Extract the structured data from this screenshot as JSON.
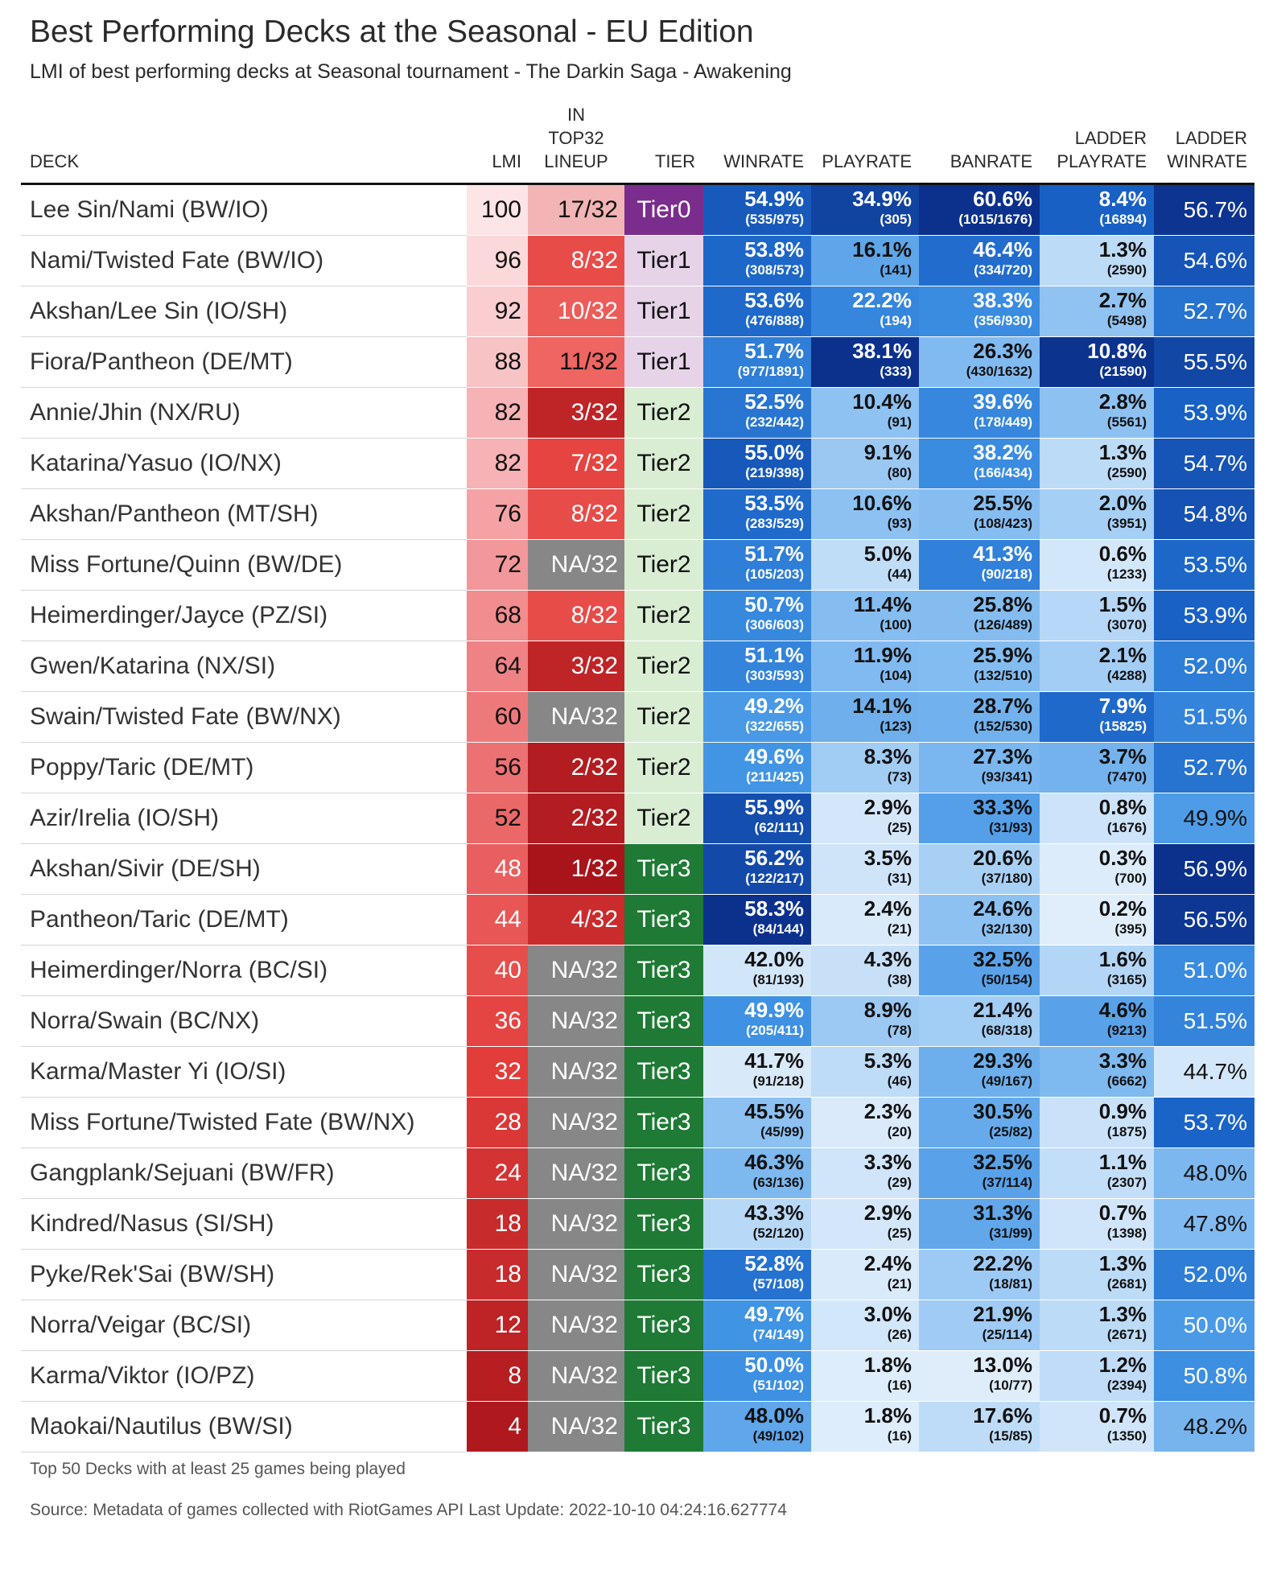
{
  "title": "Best Performing Decks at the Seasonal - EU Edition",
  "subtitle": "LMI of best performing decks at Seasonal tournament - The Darkin Saga - Awakening",
  "headers": {
    "deck": "DECK",
    "lmi": "LMI",
    "lineup": [
      "IN",
      "TOP32",
      "LINEUP"
    ],
    "tier": "TIER",
    "winrate": "WINRATE",
    "playrate": "PLAYRATE",
    "banrate": "BANRATE",
    "ladder_playrate": [
      "LADDER",
      "PLAYRATE"
    ],
    "ladder_winrate": [
      "LADDER",
      "WINRATE"
    ]
  },
  "colors": {
    "tier0": "#7b2d8e",
    "tier1": "#e6d3e8",
    "tier2": "#d9edd3",
    "tier3": "#1e7a34",
    "na_lineup": "#878787",
    "header_rule": "#111111"
  },
  "footnote": "Top 50 Decks with at least 25 games being played",
  "source": "Source: Metadata of games collected with RiotGames API Last Update: 2022-10-10 04:24:16.627774",
  "chart_data": {
    "type": "table",
    "rows": [
      {
        "deck": "Lee Sin/Nami (BW/IO)",
        "lmi": 100,
        "lineup": "17/32",
        "tier": "Tier0",
        "winrate": "54.9%",
        "winrate_count": "(535/975)",
        "playrate": "34.9%",
        "playrate_count": "(305)",
        "banrate": "60.6%",
        "banrate_count": "(1015/1676)",
        "ladder_playrate": "8.4%",
        "ladder_playrate_count": "(16894)",
        "ladder_winrate": "56.7%"
      },
      {
        "deck": "Nami/Twisted Fate (BW/IO)",
        "lmi": 96,
        "lineup": "8/32",
        "tier": "Tier1",
        "winrate": "53.8%",
        "winrate_count": "(308/573)",
        "playrate": "16.1%",
        "playrate_count": "(141)",
        "banrate": "46.4%",
        "banrate_count": "(334/720)",
        "ladder_playrate": "1.3%",
        "ladder_playrate_count": "(2590)",
        "ladder_winrate": "54.6%"
      },
      {
        "deck": "Akshan/Lee Sin (IO/SH)",
        "lmi": 92,
        "lineup": "10/32",
        "tier": "Tier1",
        "winrate": "53.6%",
        "winrate_count": "(476/888)",
        "playrate": "22.2%",
        "playrate_count": "(194)",
        "banrate": "38.3%",
        "banrate_count": "(356/930)",
        "ladder_playrate": "2.7%",
        "ladder_playrate_count": "(5498)",
        "ladder_winrate": "52.7%"
      },
      {
        "deck": "Fiora/Pantheon (DE/MT)",
        "lmi": 88,
        "lineup": "11/32",
        "tier": "Tier1",
        "winrate": "51.7%",
        "winrate_count": "(977/1891)",
        "playrate": "38.1%",
        "playrate_count": "(333)",
        "banrate": "26.3%",
        "banrate_count": "(430/1632)",
        "ladder_playrate": "10.8%",
        "ladder_playrate_count": "(21590)",
        "ladder_winrate": "55.5%"
      },
      {
        "deck": "Annie/Jhin (NX/RU)",
        "lmi": 82,
        "lineup": "3/32",
        "tier": "Tier2",
        "winrate": "52.5%",
        "winrate_count": "(232/442)",
        "playrate": "10.4%",
        "playrate_count": "(91)",
        "banrate": "39.6%",
        "banrate_count": "(178/449)",
        "ladder_playrate": "2.8%",
        "ladder_playrate_count": "(5561)",
        "ladder_winrate": "53.9%"
      },
      {
        "deck": "Katarina/Yasuo (IO/NX)",
        "lmi": 82,
        "lineup": "7/32",
        "tier": "Tier2",
        "winrate": "55.0%",
        "winrate_count": "(219/398)",
        "playrate": "9.1%",
        "playrate_count": "(80)",
        "banrate": "38.2%",
        "banrate_count": "(166/434)",
        "ladder_playrate": "1.3%",
        "ladder_playrate_count": "(2590)",
        "ladder_winrate": "54.7%"
      },
      {
        "deck": "Akshan/Pantheon (MT/SH)",
        "lmi": 76,
        "lineup": "8/32",
        "tier": "Tier2",
        "winrate": "53.5%",
        "winrate_count": "(283/529)",
        "playrate": "10.6%",
        "playrate_count": "(93)",
        "banrate": "25.5%",
        "banrate_count": "(108/423)",
        "ladder_playrate": "2.0%",
        "ladder_playrate_count": "(3951)",
        "ladder_winrate": "54.8%"
      },
      {
        "deck": "Miss Fortune/Quinn (BW/DE)",
        "lmi": 72,
        "lineup": "NA/32",
        "tier": "Tier2",
        "winrate": "51.7%",
        "winrate_count": "(105/203)",
        "playrate": "5.0%",
        "playrate_count": "(44)",
        "banrate": "41.3%",
        "banrate_count": "(90/218)",
        "ladder_playrate": "0.6%",
        "ladder_playrate_count": "(1233)",
        "ladder_winrate": "53.5%"
      },
      {
        "deck": "Heimerdinger/Jayce (PZ/SI)",
        "lmi": 68,
        "lineup": "8/32",
        "tier": "Tier2",
        "winrate": "50.7%",
        "winrate_count": "(306/603)",
        "playrate": "11.4%",
        "playrate_count": "(100)",
        "banrate": "25.8%",
        "banrate_count": "(126/489)",
        "ladder_playrate": "1.5%",
        "ladder_playrate_count": "(3070)",
        "ladder_winrate": "53.9%"
      },
      {
        "deck": "Gwen/Katarina (NX/SI)",
        "lmi": 64,
        "lineup": "3/32",
        "tier": "Tier2",
        "winrate": "51.1%",
        "winrate_count": "(303/593)",
        "playrate": "11.9%",
        "playrate_count": "(104)",
        "banrate": "25.9%",
        "banrate_count": "(132/510)",
        "ladder_playrate": "2.1%",
        "ladder_playrate_count": "(4288)",
        "ladder_winrate": "52.0%"
      },
      {
        "deck": "Swain/Twisted Fate (BW/NX)",
        "lmi": 60,
        "lineup": "NA/32",
        "tier": "Tier2",
        "winrate": "49.2%",
        "winrate_count": "(322/655)",
        "playrate": "14.1%",
        "playrate_count": "(123)",
        "banrate": "28.7%",
        "banrate_count": "(152/530)",
        "ladder_playrate": "7.9%",
        "ladder_playrate_count": "(15825)",
        "ladder_winrate": "51.5%"
      },
      {
        "deck": "Poppy/Taric (DE/MT)",
        "lmi": 56,
        "lineup": "2/32",
        "tier": "Tier2",
        "winrate": "49.6%",
        "winrate_count": "(211/425)",
        "playrate": "8.3%",
        "playrate_count": "(73)",
        "banrate": "27.3%",
        "banrate_count": "(93/341)",
        "ladder_playrate": "3.7%",
        "ladder_playrate_count": "(7470)",
        "ladder_winrate": "52.7%"
      },
      {
        "deck": "Azir/Irelia (IO/SH)",
        "lmi": 52,
        "lineup": "2/32",
        "tier": "Tier2",
        "winrate": "55.9%",
        "winrate_count": "(62/111)",
        "playrate": "2.9%",
        "playrate_count": "(25)",
        "banrate": "33.3%",
        "banrate_count": "(31/93)",
        "ladder_playrate": "0.8%",
        "ladder_playrate_count": "(1676)",
        "ladder_winrate": "49.9%"
      },
      {
        "deck": "Akshan/Sivir (DE/SH)",
        "lmi": 48,
        "lineup": "1/32",
        "tier": "Tier3",
        "winrate": "56.2%",
        "winrate_count": "(122/217)",
        "playrate": "3.5%",
        "playrate_count": "(31)",
        "banrate": "20.6%",
        "banrate_count": "(37/180)",
        "ladder_playrate": "0.3%",
        "ladder_playrate_count": "(700)",
        "ladder_winrate": "56.9%"
      },
      {
        "deck": "Pantheon/Taric (DE/MT)",
        "lmi": 44,
        "lineup": "4/32",
        "tier": "Tier3",
        "winrate": "58.3%",
        "winrate_count": "(84/144)",
        "playrate": "2.4%",
        "playrate_count": "(21)",
        "banrate": "24.6%",
        "banrate_count": "(32/130)",
        "ladder_playrate": "0.2%",
        "ladder_playrate_count": "(395)",
        "ladder_winrate": "56.5%"
      },
      {
        "deck": "Heimerdinger/Norra (BC/SI)",
        "lmi": 40,
        "lineup": "NA/32",
        "tier": "Tier3",
        "winrate": "42.0%",
        "winrate_count": "(81/193)",
        "playrate": "4.3%",
        "playrate_count": "(38)",
        "banrate": "32.5%",
        "banrate_count": "(50/154)",
        "ladder_playrate": "1.6%",
        "ladder_playrate_count": "(3165)",
        "ladder_winrate": "51.0%"
      },
      {
        "deck": "Norra/Swain (BC/NX)",
        "lmi": 36,
        "lineup": "NA/32",
        "tier": "Tier3",
        "winrate": "49.9%",
        "winrate_count": "(205/411)",
        "playrate": "8.9%",
        "playrate_count": "(78)",
        "banrate": "21.4%",
        "banrate_count": "(68/318)",
        "ladder_playrate": "4.6%",
        "ladder_playrate_count": "(9213)",
        "ladder_winrate": "51.5%"
      },
      {
        "deck": "Karma/Master Yi (IO/SI)",
        "lmi": 32,
        "lineup": "NA/32",
        "tier": "Tier3",
        "winrate": "41.7%",
        "winrate_count": "(91/218)",
        "playrate": "5.3%",
        "playrate_count": "(46)",
        "banrate": "29.3%",
        "banrate_count": "(49/167)",
        "ladder_playrate": "3.3%",
        "ladder_playrate_count": "(6662)",
        "ladder_winrate": "44.7%"
      },
      {
        "deck": "Miss Fortune/Twisted Fate (BW/NX)",
        "lmi": 28,
        "lineup": "NA/32",
        "tier": "Tier3",
        "winrate": "45.5%",
        "winrate_count": "(45/99)",
        "playrate": "2.3%",
        "playrate_count": "(20)",
        "banrate": "30.5%",
        "banrate_count": "(25/82)",
        "ladder_playrate": "0.9%",
        "ladder_playrate_count": "(1875)",
        "ladder_winrate": "53.7%"
      },
      {
        "deck": "Gangplank/Sejuani (BW/FR)",
        "lmi": 24,
        "lineup": "NA/32",
        "tier": "Tier3",
        "winrate": "46.3%",
        "winrate_count": "(63/136)",
        "playrate": "3.3%",
        "playrate_count": "(29)",
        "banrate": "32.5%",
        "banrate_count": "(37/114)",
        "ladder_playrate": "1.1%",
        "ladder_playrate_count": "(2307)",
        "ladder_winrate": "48.0%"
      },
      {
        "deck": "Kindred/Nasus (SI/SH)",
        "lmi": 18,
        "lineup": "NA/32",
        "tier": "Tier3",
        "winrate": "43.3%",
        "winrate_count": "(52/120)",
        "playrate": "2.9%",
        "playrate_count": "(25)",
        "banrate": "31.3%",
        "banrate_count": "(31/99)",
        "ladder_playrate": "0.7%",
        "ladder_playrate_count": "(1398)",
        "ladder_winrate": "47.8%"
      },
      {
        "deck": "Pyke/Rek'Sai (BW/SH)",
        "lmi": 18,
        "lineup": "NA/32",
        "tier": "Tier3",
        "winrate": "52.8%",
        "winrate_count": "(57/108)",
        "playrate": "2.4%",
        "playrate_count": "(21)",
        "banrate": "22.2%",
        "banrate_count": "(18/81)",
        "ladder_playrate": "1.3%",
        "ladder_playrate_count": "(2681)",
        "ladder_winrate": "52.0%"
      },
      {
        "deck": "Norra/Veigar (BC/SI)",
        "lmi": 12,
        "lineup": "NA/32",
        "tier": "Tier3",
        "winrate": "49.7%",
        "winrate_count": "(74/149)",
        "playrate": "3.0%",
        "playrate_count": "(26)",
        "banrate": "21.9%",
        "banrate_count": "(25/114)",
        "ladder_playrate": "1.3%",
        "ladder_playrate_count": "(2671)",
        "ladder_winrate": "50.0%"
      },
      {
        "deck": "Karma/Viktor (IO/PZ)",
        "lmi": 8,
        "lineup": "NA/32",
        "tier": "Tier3",
        "winrate": "50.0%",
        "winrate_count": "(51/102)",
        "playrate": "1.8%",
        "playrate_count": "(16)",
        "banrate": "13.0%",
        "banrate_count": "(10/77)",
        "ladder_playrate": "1.2%",
        "ladder_playrate_count": "(2394)",
        "ladder_winrate": "50.8%"
      },
      {
        "deck": "Maokai/Nautilus (BW/SI)",
        "lmi": 4,
        "lineup": "NA/32",
        "tier": "Tier3",
        "winrate": "48.0%",
        "winrate_count": "(49/102)",
        "playrate": "1.8%",
        "playrate_count": "(16)",
        "banrate": "17.6%",
        "banrate_count": "(15/85)",
        "ladder_playrate": "0.7%",
        "ladder_playrate_count": "(1350)",
        "ladder_winrate": "48.2%"
      }
    ]
  }
}
